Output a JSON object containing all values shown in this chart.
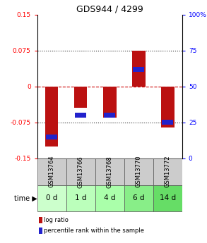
{
  "title": "GDS944 / 4299",
  "samples": [
    "GSM13764",
    "GSM13766",
    "GSM13768",
    "GSM13770",
    "GSM13772"
  ],
  "time_labels": [
    "0 d",
    "1 d",
    "4 d",
    "6 d",
    "14 d"
  ],
  "log_ratio": [
    -0.125,
    -0.045,
    -0.065,
    0.075,
    -0.085
  ],
  "percentile": [
    15,
    30,
    30,
    62,
    25
  ],
  "ylim_left": [
    -0.15,
    0.15
  ],
  "ylim_right": [
    0,
    100
  ],
  "yticks_left": [
    -0.15,
    -0.075,
    0,
    0.075,
    0.15
  ],
  "ytick_labels_left": [
    "-0.15",
    "-0.075",
    "0",
    "0.075",
    "0.15"
  ],
  "yticks_right": [
    0,
    25,
    50,
    75,
    100
  ],
  "ytick_labels_right": [
    "0",
    "25",
    "50",
    "75",
    "100%"
  ],
  "hlines_dotted": [
    -0.075,
    0.075
  ],
  "hline_dashed": 0,
  "log_ratio_color": "#bb1111",
  "percentile_color": "#2222cc",
  "bg_color": "#ffffff",
  "gsm_bg_color": "#cccccc",
  "time_bg_colors": [
    "#ccffcc",
    "#bbffbb",
    "#aaffaa",
    "#88ee88",
    "#66dd66"
  ],
  "legend_log_ratio": "log ratio",
  "legend_percentile": "percentile rank within the sample",
  "bar_width": 0.45
}
